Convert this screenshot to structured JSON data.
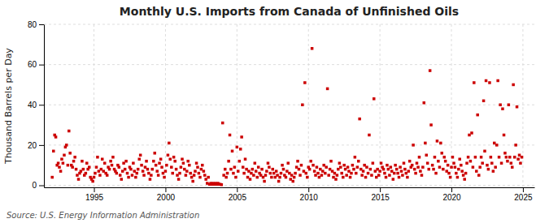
{
  "chart_data": {
    "type": "scatter",
    "title": "Monthly U.S. Imports from Canada of Unfinished Oils",
    "ylabel": "Thousand Barrels per Day",
    "annotations": [
      "Source: U.S. Energy Information Administration"
    ],
    "xlim": [
      1991.5,
      2025.8
    ],
    "ylim": [
      -1,
      80
    ],
    "xticks": [
      1995,
      2000,
      2005,
      2010,
      2015,
      2020,
      2025
    ],
    "yticks": [
      0,
      20,
      40,
      60,
      80
    ],
    "grid": true,
    "color": "#cc0000",
    "marker": "square",
    "x": [
      1992.08,
      1992.17,
      1992.25,
      1992.33,
      1992.42,
      1992.5,
      1992.58,
      1992.67,
      1992.75,
      1992.83,
      1992.92,
      1993.0,
      1993.08,
      1993.17,
      1993.25,
      1993.33,
      1993.42,
      1993.5,
      1993.58,
      1993.67,
      1993.75,
      1993.83,
      1993.92,
      1994.0,
      1994.08,
      1994.17,
      1994.25,
      1994.33,
      1994.42,
      1994.5,
      1994.58,
      1994.67,
      1994.75,
      1994.83,
      1994.92,
      1995.0,
      1995.08,
      1995.17,
      1995.25,
      1995.33,
      1995.42,
      1995.5,
      1995.58,
      1995.67,
      1995.75,
      1995.83,
      1995.92,
      1996.0,
      1996.08,
      1996.17,
      1996.25,
      1996.33,
      1996.42,
      1996.5,
      1996.58,
      1996.67,
      1996.75,
      1996.83,
      1996.92,
      1997.0,
      1997.08,
      1997.17,
      1997.25,
      1997.33,
      1997.42,
      1997.5,
      1997.58,
      1997.67,
      1997.75,
      1997.83,
      1997.92,
      1998.0,
      1998.08,
      1998.17,
      1998.25,
      1998.33,
      1998.42,
      1998.5,
      1998.58,
      1998.67,
      1998.75,
      1998.83,
      1998.92,
      1999.0,
      1999.08,
      1999.17,
      1999.25,
      1999.33,
      1999.42,
      1999.5,
      1999.58,
      1999.67,
      1999.75,
      1999.83,
      1999.92,
      2000.0,
      2000.08,
      2000.17,
      2000.25,
      2000.33,
      2000.42,
      2000.5,
      2000.58,
      2000.67,
      2000.75,
      2000.83,
      2000.92,
      2001.0,
      2001.08,
      2001.17,
      2001.25,
      2001.33,
      2001.42,
      2001.5,
      2001.58,
      2001.67,
      2001.75,
      2001.83,
      2001.92,
      2002.0,
      2002.08,
      2002.17,
      2002.25,
      2002.33,
      2002.42,
      2002.5,
      2002.58,
      2002.67,
      2002.75,
      2002.83,
      2002.92,
      2003.0,
      2003.08,
      2003.17,
      2003.25,
      2003.33,
      2003.42,
      2003.5,
      2003.58,
      2003.67,
      2003.75,
      2003.83,
      2003.92,
      2004.0,
      2004.08,
      2004.17,
      2004.25,
      2004.33,
      2004.42,
      2004.5,
      2004.58,
      2004.67,
      2004.75,
      2004.83,
      2004.92,
      2005.0,
      2005.08,
      2005.17,
      2005.25,
      2005.33,
      2005.42,
      2005.5,
      2005.58,
      2005.67,
      2005.75,
      2005.83,
      2005.92,
      2006.0,
      2006.08,
      2006.17,
      2006.25,
      2006.33,
      2006.42,
      2006.5,
      2006.58,
      2006.67,
      2006.75,
      2006.83,
      2006.92,
      2007.0,
      2007.08,
      2007.17,
      2007.25,
      2007.33,
      2007.42,
      2007.5,
      2007.58,
      2007.67,
      2007.75,
      2007.83,
      2007.92,
      2008.0,
      2008.08,
      2008.17,
      2008.25,
      2008.33,
      2008.42,
      2008.5,
      2008.58,
      2008.67,
      2008.75,
      2008.83,
      2008.92,
      2009.0,
      2009.08,
      2009.17,
      2009.25,
      2009.33,
      2009.42,
      2009.5,
      2009.58,
      2009.67,
      2009.75,
      2009.83,
      2009.92,
      2010.0,
      2010.08,
      2010.17,
      2010.25,
      2010.33,
      2010.42,
      2010.5,
      2010.58,
      2010.67,
      2010.75,
      2010.83,
      2010.92,
      2011.0,
      2011.08,
      2011.17,
      2011.25,
      2011.33,
      2011.42,
      2011.5,
      2011.58,
      2011.67,
      2011.75,
      2011.83,
      2011.92,
      2012.0,
      2012.08,
      2012.17,
      2012.25,
      2012.33,
      2012.42,
      2012.5,
      2012.58,
      2012.67,
      2012.75,
      2012.83,
      2012.92,
      2013.0,
      2013.08,
      2013.17,
      2013.25,
      2013.33,
      2013.42,
      2013.5,
      2013.58,
      2013.67,
      2013.75,
      2013.83,
      2013.92,
      2014.0,
      2014.08,
      2014.17,
      2014.25,
      2014.33,
      2014.42,
      2014.5,
      2014.58,
      2014.67,
      2014.75,
      2014.83,
      2014.92,
      2015.0,
      2015.08,
      2015.17,
      2015.25,
      2015.33,
      2015.42,
      2015.5,
      2015.58,
      2015.67,
      2015.75,
      2015.83,
      2015.92,
      2016.0,
      2016.08,
      2016.17,
      2016.25,
      2016.33,
      2016.42,
      2016.5,
      2016.58,
      2016.67,
      2016.75,
      2016.83,
      2016.92,
      2017.0,
      2017.08,
      2017.17,
      2017.25,
      2017.33,
      2017.42,
      2017.5,
      2017.58,
      2017.67,
      2017.75,
      2017.83,
      2017.92,
      2018.0,
      2018.08,
      2018.17,
      2018.25,
      2018.33,
      2018.42,
      2018.5,
      2018.58,
      2018.67,
      2018.75,
      2018.83,
      2018.92,
      2019.0,
      2019.08,
      2019.17,
      2019.25,
      2019.33,
      2019.42,
      2019.5,
      2019.58,
      2019.67,
      2019.75,
      2019.83,
      2019.92,
      2020.0,
      2020.08,
      2020.17,
      2020.25,
      2020.33,
      2020.42,
      2020.5,
      2020.58,
      2020.67,
      2020.75,
      2020.83,
      2020.92,
      2021.0,
      2021.08,
      2021.17,
      2021.25,
      2021.33,
      2021.42,
      2021.5,
      2021.58,
      2021.67,
      2021.75,
      2021.83,
      2021.92,
      2022.0,
      2022.08,
      2022.17,
      2022.25,
      2022.33,
      2022.42,
      2022.5,
      2022.58,
      2022.67,
      2022.75,
      2022.83,
      2022.92,
      2023.0,
      2023.08,
      2023.17,
      2023.25,
      2023.33,
      2023.42,
      2023.5,
      2023.58,
      2023.67,
      2023.75,
      2023.83,
      2023.92,
      2024.0,
      2024.08,
      2024.17,
      2024.25,
      2024.33,
      2024.42,
      2024.5,
      2024.58,
      2024.67,
      2024.75,
      2024.83,
      2024.92
    ],
    "values": [
      4,
      17,
      25,
      24,
      10,
      11,
      9,
      7,
      13,
      11,
      15,
      19,
      20,
      10,
      27,
      16,
      10,
      9,
      12,
      14,
      8,
      5,
      3,
      6,
      7,
      12,
      8,
      5,
      6,
      11,
      8,
      9,
      4,
      3,
      2,
      4,
      6,
      9,
      14,
      7,
      5,
      8,
      13,
      7,
      11,
      6,
      5,
      9,
      8,
      12,
      10,
      14,
      8,
      7,
      6,
      10,
      9,
      5,
      3,
      7,
      11,
      8,
      12,
      6,
      4,
      9,
      8,
      5,
      11,
      7,
      4,
      6,
      8,
      13,
      15,
      10,
      7,
      5,
      9,
      12,
      8,
      6,
      3,
      5,
      8,
      12,
      16,
      10,
      7,
      5,
      11,
      13,
      9,
      6,
      4,
      7,
      10,
      15,
      21,
      13,
      9,
      6,
      14,
      12,
      8,
      5,
      3,
      6,
      9,
      13,
      11,
      8,
      5,
      7,
      12,
      10,
      6,
      4,
      2,
      5,
      7,
      11,
      9,
      6,
      4,
      8,
      10,
      7,
      5,
      3,
      1,
      4,
      0.5,
      1,
      0.5,
      1,
      0.5,
      1,
      0.5,
      1,
      0.5,
      0.5,
      0.3,
      31,
      5,
      8,
      4,
      6,
      12,
      25,
      8,
      17,
      6,
      9,
      4,
      19,
      7,
      12,
      18,
      24,
      9,
      6,
      13,
      8,
      4,
      7,
      3,
      6,
      8,
      5,
      11,
      7,
      4,
      9,
      6,
      5,
      8,
      4,
      2,
      5,
      7,
      11,
      9,
      6,
      4,
      8,
      6,
      4,
      7,
      5,
      2,
      4,
      6,
      10,
      8,
      5,
      4,
      7,
      11,
      6,
      3,
      5,
      2,
      4,
      6,
      9,
      12,
      8,
      5,
      10,
      40,
      7,
      51,
      6,
      4,
      9,
      8,
      12,
      68,
      10,
      7,
      5,
      9,
      6,
      4,
      8,
      5,
      7,
      10,
      6,
      9,
      48,
      5,
      8,
      12,
      7,
      4,
      6,
      3,
      5,
      8,
      11,
      9,
      6,
      4,
      10,
      8,
      5,
      9,
      7,
      4,
      6,
      10,
      8,
      14,
      6,
      9,
      12,
      33,
      8,
      5,
      7,
      10,
      4,
      9,
      6,
      25,
      8,
      5,
      11,
      43,
      7,
      4,
      8,
      5,
      7,
      11,
      9,
      8,
      6,
      4,
      10,
      8,
      5,
      9,
      7,
      3,
      6,
      10,
      8,
      6,
      4,
      9,
      7,
      5,
      11,
      8,
      6,
      4,
      7,
      12,
      9,
      10,
      20,
      8,
      6,
      11,
      9,
      14,
      7,
      5,
      9,
      41,
      21,
      15,
      11,
      8,
      57,
      30,
      10,
      8,
      14,
      6,
      22,
      12,
      9,
      21,
      16,
      8,
      14,
      12,
      7,
      10,
      6,
      4,
      9,
      14,
      11,
      9,
      6,
      4,
      8,
      13,
      10,
      7,
      5,
      3,
      6,
      11,
      14,
      25,
      12,
      26,
      9,
      51,
      14,
      7,
      35,
      5,
      9,
      14,
      11,
      42,
      17,
      52,
      10,
      8,
      51,
      14,
      11,
      7,
      21,
      9,
      20,
      52,
      14,
      40,
      11,
      38,
      25,
      16,
      14,
      12,
      40,
      14,
      11,
      9,
      50,
      14,
      20,
      39,
      13,
      15,
      11,
      14
    ]
  }
}
